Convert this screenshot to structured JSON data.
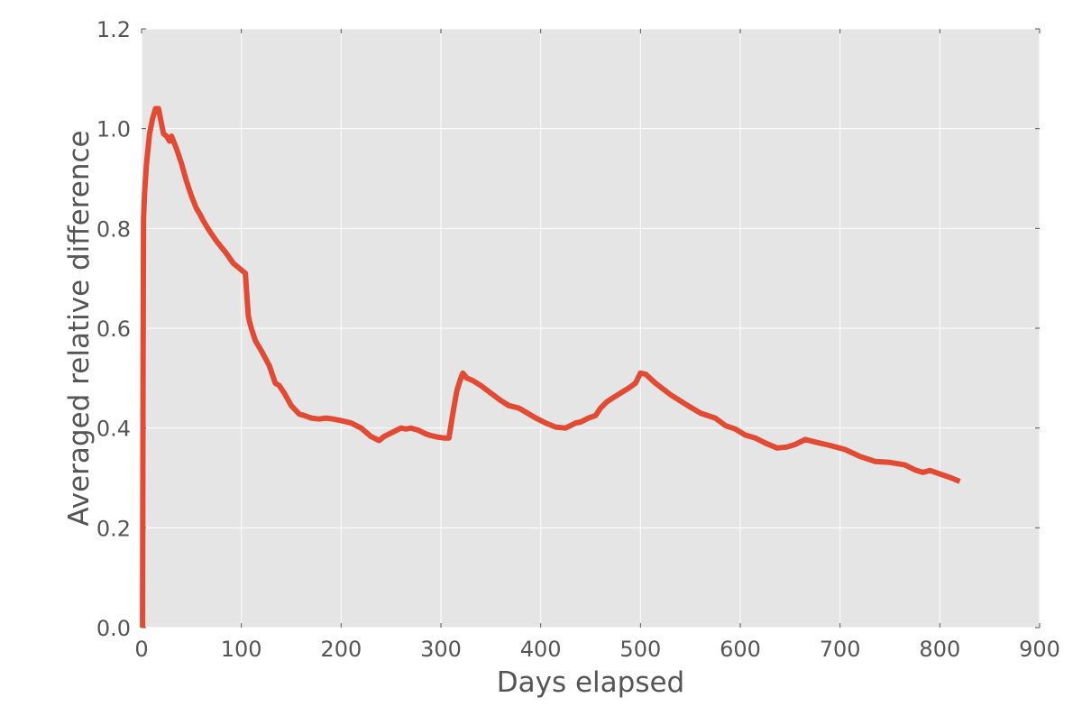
{
  "chart_data": {
    "type": "line",
    "title": "",
    "xlabel": "Days elapsed",
    "ylabel": "Averaged relative difference",
    "xlim": [
      0,
      900
    ],
    "ylim": [
      0,
      1.2
    ],
    "xticks": [
      "0",
      "100",
      "200",
      "300",
      "400",
      "500",
      "600",
      "700",
      "800",
      "900"
    ],
    "yticks": [
      "0.0",
      "0.2",
      "0.4",
      "0.6",
      "0.8",
      "1.0",
      "1.2"
    ],
    "grid": true,
    "legend": "none",
    "colors": {
      "line": "#e24a33",
      "plot_background": "#e5e5e5",
      "grid": "#ffffff",
      "text": "#555555"
    },
    "series": [
      {
        "x": [
          1,
          1.5,
          2,
          3,
          5,
          8,
          11,
          14,
          17,
          19,
          22,
          25,
          28,
          30,
          32,
          35,
          40,
          45,
          50,
          55,
          58,
          62,
          65,
          68,
          75,
          85,
          92,
          98,
          104,
          107,
          108,
          110,
          114,
          120,
          128,
          134,
          138,
          143,
          150,
          158,
          163,
          170,
          178,
          185,
          192,
          200,
          210,
          220,
          230,
          238,
          243,
          248,
          255,
          260,
          265,
          270,
          278,
          285,
          290,
          296,
          303,
          308,
          312,
          316,
          320,
          322,
          326,
          332,
          340,
          350,
          360,
          368,
          378,
          385,
          395,
          405,
          415,
          425,
          435,
          440,
          448,
          455,
          460,
          466,
          472,
          480,
          488,
          495,
          500,
          505,
          515,
          530,
          545,
          560,
          575,
          585,
          595,
          605,
          615,
          625,
          637,
          647,
          655,
          665,
          675,
          690,
          705,
          720,
          735,
          750,
          765,
          775,
          783,
          790,
          800,
          810,
          820
        ],
        "y": [
          0.0,
          0.55,
          0.82,
          0.87,
          0.93,
          0.99,
          1.02,
          1.04,
          1.04,
          1.02,
          0.99,
          0.985,
          0.975,
          0.985,
          0.975,
          0.96,
          0.93,
          0.895,
          0.865,
          0.84,
          0.83,
          0.815,
          0.805,
          0.795,
          0.775,
          0.75,
          0.73,
          0.72,
          0.71,
          0.625,
          0.615,
          0.6,
          0.575,
          0.555,
          0.525,
          0.49,
          0.485,
          0.47,
          0.445,
          0.428,
          0.425,
          0.42,
          0.418,
          0.42,
          0.418,
          0.415,
          0.41,
          0.4,
          0.383,
          0.375,
          0.383,
          0.388,
          0.395,
          0.4,
          0.398,
          0.4,
          0.395,
          0.388,
          0.385,
          0.382,
          0.38,
          0.38,
          0.43,
          0.475,
          0.5,
          0.51,
          0.5,
          0.495,
          0.485,
          0.47,
          0.455,
          0.445,
          0.44,
          0.432,
          0.42,
          0.41,
          0.402,
          0.4,
          0.41,
          0.412,
          0.42,
          0.425,
          0.44,
          0.452,
          0.46,
          0.47,
          0.48,
          0.49,
          0.51,
          0.508,
          0.49,
          0.467,
          0.448,
          0.43,
          0.42,
          0.405,
          0.398,
          0.386,
          0.38,
          0.37,
          0.36,
          0.362,
          0.367,
          0.377,
          0.372,
          0.365,
          0.357,
          0.343,
          0.333,
          0.331,
          0.326,
          0.316,
          0.311,
          0.315,
          0.308,
          0.301,
          0.293
        ]
      }
    ]
  }
}
